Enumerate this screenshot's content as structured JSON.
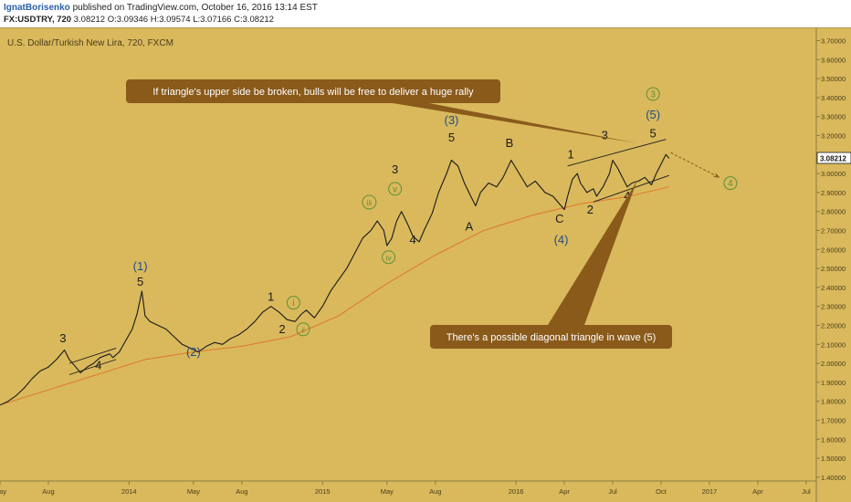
{
  "header": {
    "author": "IgnatBorisenko",
    "published": "published on TradingView.com, October 16, 2016 13:14 EST",
    "symbol": "FX:USDTRY, 720",
    "ohlc": " 3.08212 O:3.09346 H:3.09574 L:3.07166 C:3.08212"
  },
  "colors": {
    "background": "#d9b95c",
    "price": "#1a1a1a",
    "moving_average": "#e0772a",
    "callout": "#8a5a1b",
    "wave_blue": "#1f4c86",
    "wave_green": "#5f8f3a",
    "label_dark": "#1a1a1a"
  },
  "chart_data": {
    "type": "line",
    "title": "U.S. Dollar/Turkish New Lira, 720, FXCM",
    "price_scale": [
      "3.70000",
      "3.60000",
      "3.50000",
      "3.40000",
      "3.30000",
      "3.20000",
      "3.10000",
      "3.00000",
      "2.90000",
      "2.80000",
      "2.70000",
      "2.60000",
      "2.50000",
      "2.40000",
      "2.30000",
      "2.20000",
      "2.10000",
      "2.00000",
      "1.90000",
      "1.80000",
      "1.70000",
      "1.60000",
      "1.50000",
      "1.40000"
    ],
    "ylim": [
      1.38,
      3.77
    ],
    "last_price": "3.08212",
    "x_ticks": [
      {
        "label": "May",
        "t": 0.0
      },
      {
        "label": "Aug",
        "t": 3.0
      },
      {
        "label": "2014",
        "t": 8.0
      },
      {
        "label": "May",
        "t": 12.0
      },
      {
        "label": "Aug",
        "t": 15.0
      },
      {
        "label": "2015",
        "t": 20.0
      },
      {
        "label": "May",
        "t": 24.0
      },
      {
        "label": "Aug",
        "t": 27.0
      },
      {
        "label": "2016",
        "t": 32.0
      },
      {
        "label": "Apr",
        "t": 35.0
      },
      {
        "label": "Jul",
        "t": 38.0
      },
      {
        "label": "Oct",
        "t": 41.0
      },
      {
        "label": "2017",
        "t": 44.0
      },
      {
        "label": "Apr",
        "t": 47.0
      },
      {
        "label": "Jul",
        "t": 50.0
      }
    ],
    "xlim": [
      0.0,
      50.4
    ],
    "series": [
      {
        "kind": "price",
        "points": [
          [
            0.0,
            1.78
          ],
          [
            0.5,
            1.8
          ],
          [
            1.0,
            1.83
          ],
          [
            1.5,
            1.87
          ],
          [
            2.0,
            1.92
          ],
          [
            2.5,
            1.96
          ],
          [
            3.0,
            1.98
          ],
          [
            3.5,
            2.02
          ],
          [
            4.0,
            2.07
          ],
          [
            4.3,
            2.02
          ],
          [
            4.7,
            1.98
          ],
          [
            5.0,
            1.95
          ],
          [
            5.4,
            1.98
          ],
          [
            5.8,
            2.0
          ],
          [
            6.2,
            2.03
          ],
          [
            6.8,
            2.05
          ],
          [
            7.0,
            2.03
          ],
          [
            7.4,
            2.06
          ],
          [
            7.8,
            2.12
          ],
          [
            8.2,
            2.18
          ],
          [
            8.5,
            2.26
          ],
          [
            8.8,
            2.38
          ],
          [
            9.0,
            2.25
          ],
          [
            9.3,
            2.22
          ],
          [
            9.8,
            2.2
          ],
          [
            10.3,
            2.18
          ],
          [
            10.8,
            2.14
          ],
          [
            11.3,
            2.1
          ],
          [
            11.8,
            2.08
          ],
          [
            12.3,
            2.06
          ],
          [
            12.8,
            2.09
          ],
          [
            13.3,
            2.11
          ],
          [
            13.8,
            2.1
          ],
          [
            14.3,
            2.13
          ],
          [
            14.8,
            2.15
          ],
          [
            15.3,
            2.18
          ],
          [
            15.8,
            2.22
          ],
          [
            16.3,
            2.27
          ],
          [
            16.8,
            2.3
          ],
          [
            17.3,
            2.27
          ],
          [
            17.8,
            2.23
          ],
          [
            18.3,
            2.22
          ],
          [
            18.7,
            2.26
          ],
          [
            19.0,
            2.28
          ],
          [
            19.5,
            2.24
          ],
          [
            20.0,
            2.3
          ],
          [
            20.5,
            2.38
          ],
          [
            21.0,
            2.44
          ],
          [
            21.5,
            2.5
          ],
          [
            22.0,
            2.58
          ],
          [
            22.5,
            2.66
          ],
          [
            23.0,
            2.7
          ],
          [
            23.4,
            2.75
          ],
          [
            23.8,
            2.7
          ],
          [
            24.0,
            2.62
          ],
          [
            24.3,
            2.66
          ],
          [
            24.6,
            2.75
          ],
          [
            24.9,
            2.8
          ],
          [
            25.3,
            2.73
          ],
          [
            25.6,
            2.67
          ],
          [
            26.0,
            2.64
          ],
          [
            26.3,
            2.7
          ],
          [
            26.8,
            2.79
          ],
          [
            27.2,
            2.9
          ],
          [
            27.7,
            3.0
          ],
          [
            28.0,
            3.07
          ],
          [
            28.4,
            3.04
          ],
          [
            28.8,
            2.95
          ],
          [
            29.2,
            2.88
          ],
          [
            29.5,
            2.83
          ],
          [
            29.8,
            2.9
          ],
          [
            30.3,
            2.95
          ],
          [
            30.8,
            2.93
          ],
          [
            31.2,
            2.98
          ],
          [
            31.7,
            3.07
          ],
          [
            32.2,
            3.0
          ],
          [
            32.7,
            2.93
          ],
          [
            33.2,
            2.96
          ],
          [
            33.8,
            2.9
          ],
          [
            34.3,
            2.88
          ],
          [
            34.8,
            2.83
          ],
          [
            35.0,
            2.81
          ],
          [
            35.2,
            2.88
          ],
          [
            35.5,
            2.97
          ],
          [
            35.8,
            3.0
          ],
          [
            36.0,
            2.95
          ],
          [
            36.4,
            2.9
          ],
          [
            36.8,
            2.92
          ],
          [
            37.0,
            2.88
          ],
          [
            37.4,
            2.93
          ],
          [
            37.8,
            3.0
          ],
          [
            38.0,
            3.07
          ],
          [
            38.3,
            3.03
          ],
          [
            38.6,
            2.98
          ],
          [
            38.9,
            2.93
          ],
          [
            39.2,
            2.95
          ],
          [
            39.6,
            2.96
          ],
          [
            40.0,
            2.98
          ],
          [
            40.4,
            2.94
          ],
          [
            40.7,
            3.0
          ],
          [
            41.0,
            3.05
          ],
          [
            41.3,
            3.1
          ],
          [
            41.5,
            3.08
          ]
        ]
      },
      {
        "kind": "moving_average",
        "points": [
          [
            0.0,
            1.78
          ],
          [
            3.0,
            1.86
          ],
          [
            6.0,
            1.94
          ],
          [
            9.0,
            2.02
          ],
          [
            12.0,
            2.06
          ],
          [
            15.0,
            2.09
          ],
          [
            18.0,
            2.14
          ],
          [
            21.0,
            2.25
          ],
          [
            24.0,
            2.42
          ],
          [
            27.0,
            2.57
          ],
          [
            30.0,
            2.7
          ],
          [
            33.0,
            2.78
          ],
          [
            36.0,
            2.84
          ],
          [
            39.0,
            2.88
          ],
          [
            41.5,
            2.93
          ]
        ]
      }
    ],
    "wave_labels": [
      {
        "text": "3",
        "t": 3.9,
        "v": 2.11,
        "color": "label_dark",
        "circled": false
      },
      {
        "text": "4",
        "t": 6.1,
        "v": 1.97,
        "color": "label_dark",
        "circled": false
      },
      {
        "text": "(1)",
        "t": 8.7,
        "v": 2.49,
        "color": "wave_blue",
        "circled": false
      },
      {
        "text": "5",
        "t": 8.7,
        "v": 2.41,
        "color": "label_dark",
        "circled": false
      },
      {
        "text": "(2)",
        "t": 12.0,
        "v": 2.04,
        "color": "wave_blue",
        "circled": false
      },
      {
        "text": "1",
        "t": 16.8,
        "v": 2.33,
        "color": "label_dark",
        "circled": false
      },
      {
        "text": "i",
        "t": 18.2,
        "v": 2.3,
        "color": "wave_green",
        "circled": true
      },
      {
        "text": "2",
        "t": 17.5,
        "v": 2.16,
        "color": "label_dark",
        "circled": false
      },
      {
        "text": "ii",
        "t": 18.8,
        "v": 2.16,
        "color": "wave_green",
        "circled": true
      },
      {
        "text": "iii",
        "t": 22.9,
        "v": 2.83,
        "color": "wave_green",
        "circled": true
      },
      {
        "text": "3",
        "t": 24.5,
        "v": 3.0,
        "color": "label_dark",
        "circled": false
      },
      {
        "text": "v",
        "t": 24.5,
        "v": 2.9,
        "color": "wave_green",
        "circled": true
      },
      {
        "text": "iv",
        "t": 24.1,
        "v": 2.54,
        "color": "wave_green",
        "circled": true
      },
      {
        "text": "4",
        "t": 25.6,
        "v": 2.63,
        "color": "label_dark",
        "circled": false
      },
      {
        "text": "(3)",
        "t": 28.0,
        "v": 3.26,
        "color": "wave_blue",
        "circled": false
      },
      {
        "text": "5",
        "t": 28.0,
        "v": 3.17,
        "color": "label_dark",
        "circled": false
      },
      {
        "text": "A",
        "t": 29.1,
        "v": 2.7,
        "color": "label_dark",
        "circled": false
      },
      {
        "text": "B",
        "t": 31.6,
        "v": 3.14,
        "color": "label_dark",
        "circled": false
      },
      {
        "text": "C",
        "t": 34.7,
        "v": 2.74,
        "color": "label_dark",
        "circled": false
      },
      {
        "text": "(4)",
        "t": 34.8,
        "v": 2.63,
        "color": "wave_blue",
        "circled": false
      },
      {
        "text": "1",
        "t": 35.4,
        "v": 3.08,
        "color": "label_dark",
        "circled": false
      },
      {
        "text": "2",
        "t": 36.6,
        "v": 2.79,
        "color": "label_dark",
        "circled": false
      },
      {
        "text": "3",
        "t": 37.5,
        "v": 3.18,
        "color": "label_dark",
        "circled": false
      },
      {
        "text": "4",
        "t": 38.9,
        "v": 2.86,
        "color": "label_dark",
        "circled": false
      },
      {
        "text": "3",
        "t": 40.5,
        "v": 3.4,
        "color": "wave_green",
        "circled": true
      },
      {
        "text": "(5)",
        "t": 40.5,
        "v": 3.29,
        "color": "wave_blue",
        "circled": false
      },
      {
        "text": "5",
        "t": 40.5,
        "v": 3.19,
        "color": "label_dark",
        "circled": false
      },
      {
        "text": "4",
        "t": 45.3,
        "v": 2.93,
        "color": "wave_green",
        "circled": true
      }
    ],
    "annotations": [
      {
        "text": "If triangle's upper side be broken, bulls will be free to deliver a huge rally",
        "anchor_t": 39.5,
        "anchor_v": 3.16
      },
      {
        "text": "There's a possible diagonal triangle in wave (5)",
        "anchor_t": 39.5,
        "anchor_v": 2.96
      }
    ]
  }
}
